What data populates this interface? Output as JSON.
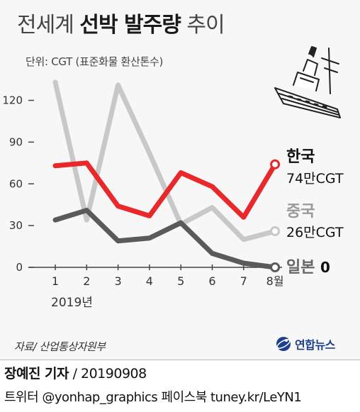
{
  "title": {
    "part1": "전세계",
    "part2": "선박 발주량",
    "part3": "추이"
  },
  "unit_label": "단위: CGT (표준화물 환산톤수)",
  "chart_data": {
    "type": "line",
    "categories": [
      "1",
      "2",
      "3",
      "4",
      "5",
      "6",
      "7",
      "8월"
    ],
    "year_label": "2019년",
    "y_ticks": [
      "0",
      "30",
      "60",
      "90",
      "120"
    ],
    "ylim": [
      0,
      130
    ],
    "grid": false,
    "series": [
      {
        "name": "한국",
        "value_label": "74만CGT",
        "color": "#e8282b",
        "values": [
          73,
          75,
          44,
          37,
          68,
          58,
          36,
          74
        ]
      },
      {
        "name": "중국",
        "value_label": "26만CGT",
        "color": "#c8c8c8",
        "values": [
          133,
          34,
          131,
          82,
          31,
          43,
          20,
          26
        ]
      },
      {
        "name": "일본",
        "value_label": "0",
        "color": "#5a5a5a",
        "values": [
          34,
          41,
          19,
          21,
          32,
          10,
          3,
          0
        ]
      }
    ]
  },
  "source": "자료/ 산업통상자원부",
  "agency_logo": {
    "text": "연합뉴스",
    "color": "#1d3f8f"
  },
  "credit": {
    "reporter": "장예진 기자",
    "date": "/ 20190908",
    "social": "트위터 @yonhap_graphics  페이스북 tuney.kr/LeYN1"
  }
}
